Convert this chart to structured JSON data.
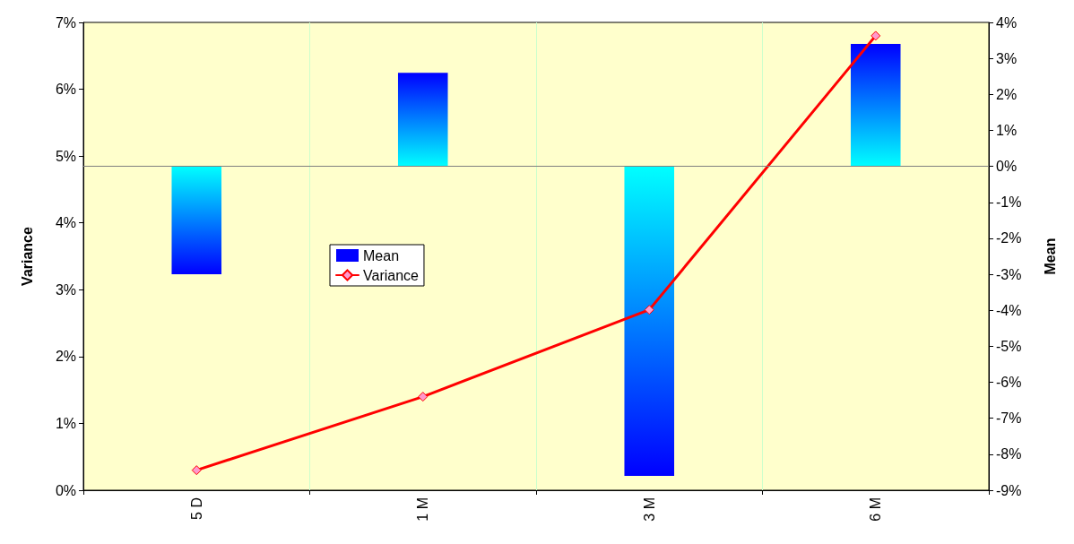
{
  "chart_data": {
    "type": "bar",
    "categories": [
      "5 D",
      "1 M",
      "3 M",
      "6 M"
    ],
    "series": [
      {
        "name": "Mean",
        "axis": "y2",
        "color": "#0000ff",
        "values": [
          -3.0,
          2.6,
          -8.6,
          3.4
        ]
      },
      {
        "name": "Variance",
        "type": "line",
        "color": "#ff0000",
        "marker": "diamond",
        "line_style": "solid",
        "values": [
          0.3,
          1.4,
          2.7,
          6.8
        ]
      }
    ],
    "ylabel": "Variance",
    "y2label": "Mean",
    "ylim": [
      0,
      7
    ],
    "yticks": [
      {
        "value": 0,
        "label": "0%"
      },
      {
        "value": 1,
        "label": "1%"
      },
      {
        "value": 2,
        "label": "2%"
      },
      {
        "value": 3,
        "label": "3%"
      },
      {
        "value": 4,
        "label": "4%"
      },
      {
        "value": 5,
        "label": "5%"
      },
      {
        "value": 6,
        "label": "6%"
      },
      {
        "value": 7,
        "label": "7%"
      }
    ],
    "y2lim": [
      -9,
      4
    ],
    "y2ticks": [
      {
        "value": -9,
        "label": "-9%"
      },
      {
        "value": -8,
        "label": "-8%"
      },
      {
        "value": -7,
        "label": "-7%"
      },
      {
        "value": -6,
        "label": "-6%"
      },
      {
        "value": -5,
        "label": "-5%"
      },
      {
        "value": -4,
        "label": "-4%"
      },
      {
        "value": -3,
        "label": "-3%"
      },
      {
        "value": -2,
        "label": "-2%"
      },
      {
        "value": -1,
        "label": "-1%"
      },
      {
        "value": 0,
        "label": "0%"
      },
      {
        "value": 1,
        "label": "1%"
      },
      {
        "value": 2,
        "label": "2%"
      },
      {
        "value": 3,
        "label": "3%"
      },
      {
        "value": 4,
        "label": "4%"
      }
    ],
    "ref_lines": [
      {
        "axis": "y2",
        "value": 0,
        "color": "#808080"
      }
    ],
    "grid": "x",
    "legend": "left"
  }
}
